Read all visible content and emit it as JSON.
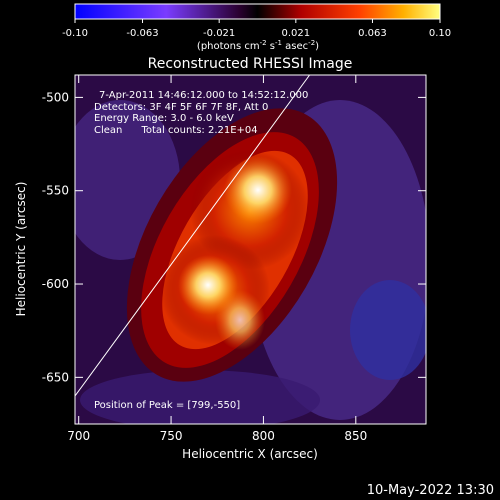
{
  "colorbar": {
    "ticks": [
      "-0.10",
      "-0.063",
      "-0.021",
      "0.021",
      "0.063",
      "0.10"
    ],
    "tick_values": [
      -0.1,
      -0.063,
      -0.021,
      0.021,
      0.063,
      0.1
    ],
    "range": [
      -0.1,
      0.1
    ],
    "units_main": "(photons cm",
    "units_exp1": "-2",
    "units_mid": " s",
    "units_exp2": "-1",
    "units_tail": " asec",
    "units_exp3": "-2",
    "units_close": ")"
  },
  "chart_data": {
    "type": "heatmap",
    "title": "Reconstructed RHESSI Image",
    "xlabel": "Heliocentric X (arcsec)",
    "ylabel": "Heliocentric Y (arcsec)",
    "xlim": [
      698,
      888
    ],
    "ylim": [
      -675,
      -488
    ],
    "xticks": [
      700,
      750,
      800,
      850
    ],
    "yticks": [
      -500,
      -550,
      -600,
      -650
    ],
    "annotations": [
      "7-Apr-2011 14:46:12.000 to 14:52:12.000",
      "Detectors: 3F 4F 5F 6F 7F 8F, Att 0",
      "Energy Range: 3.0 - 6.0 keV",
      "Clean      Total counts: 2.21E+04"
    ],
    "peak_label": "Position of Peak = [799,-550]",
    "peak": [
      799,
      -550
    ],
    "limb_line": [
      [
        698,
        -660
      ],
      [
        825,
        -488
      ]
    ]
  },
  "footer": {
    "timestamp": "10-May-2022 13:30"
  }
}
